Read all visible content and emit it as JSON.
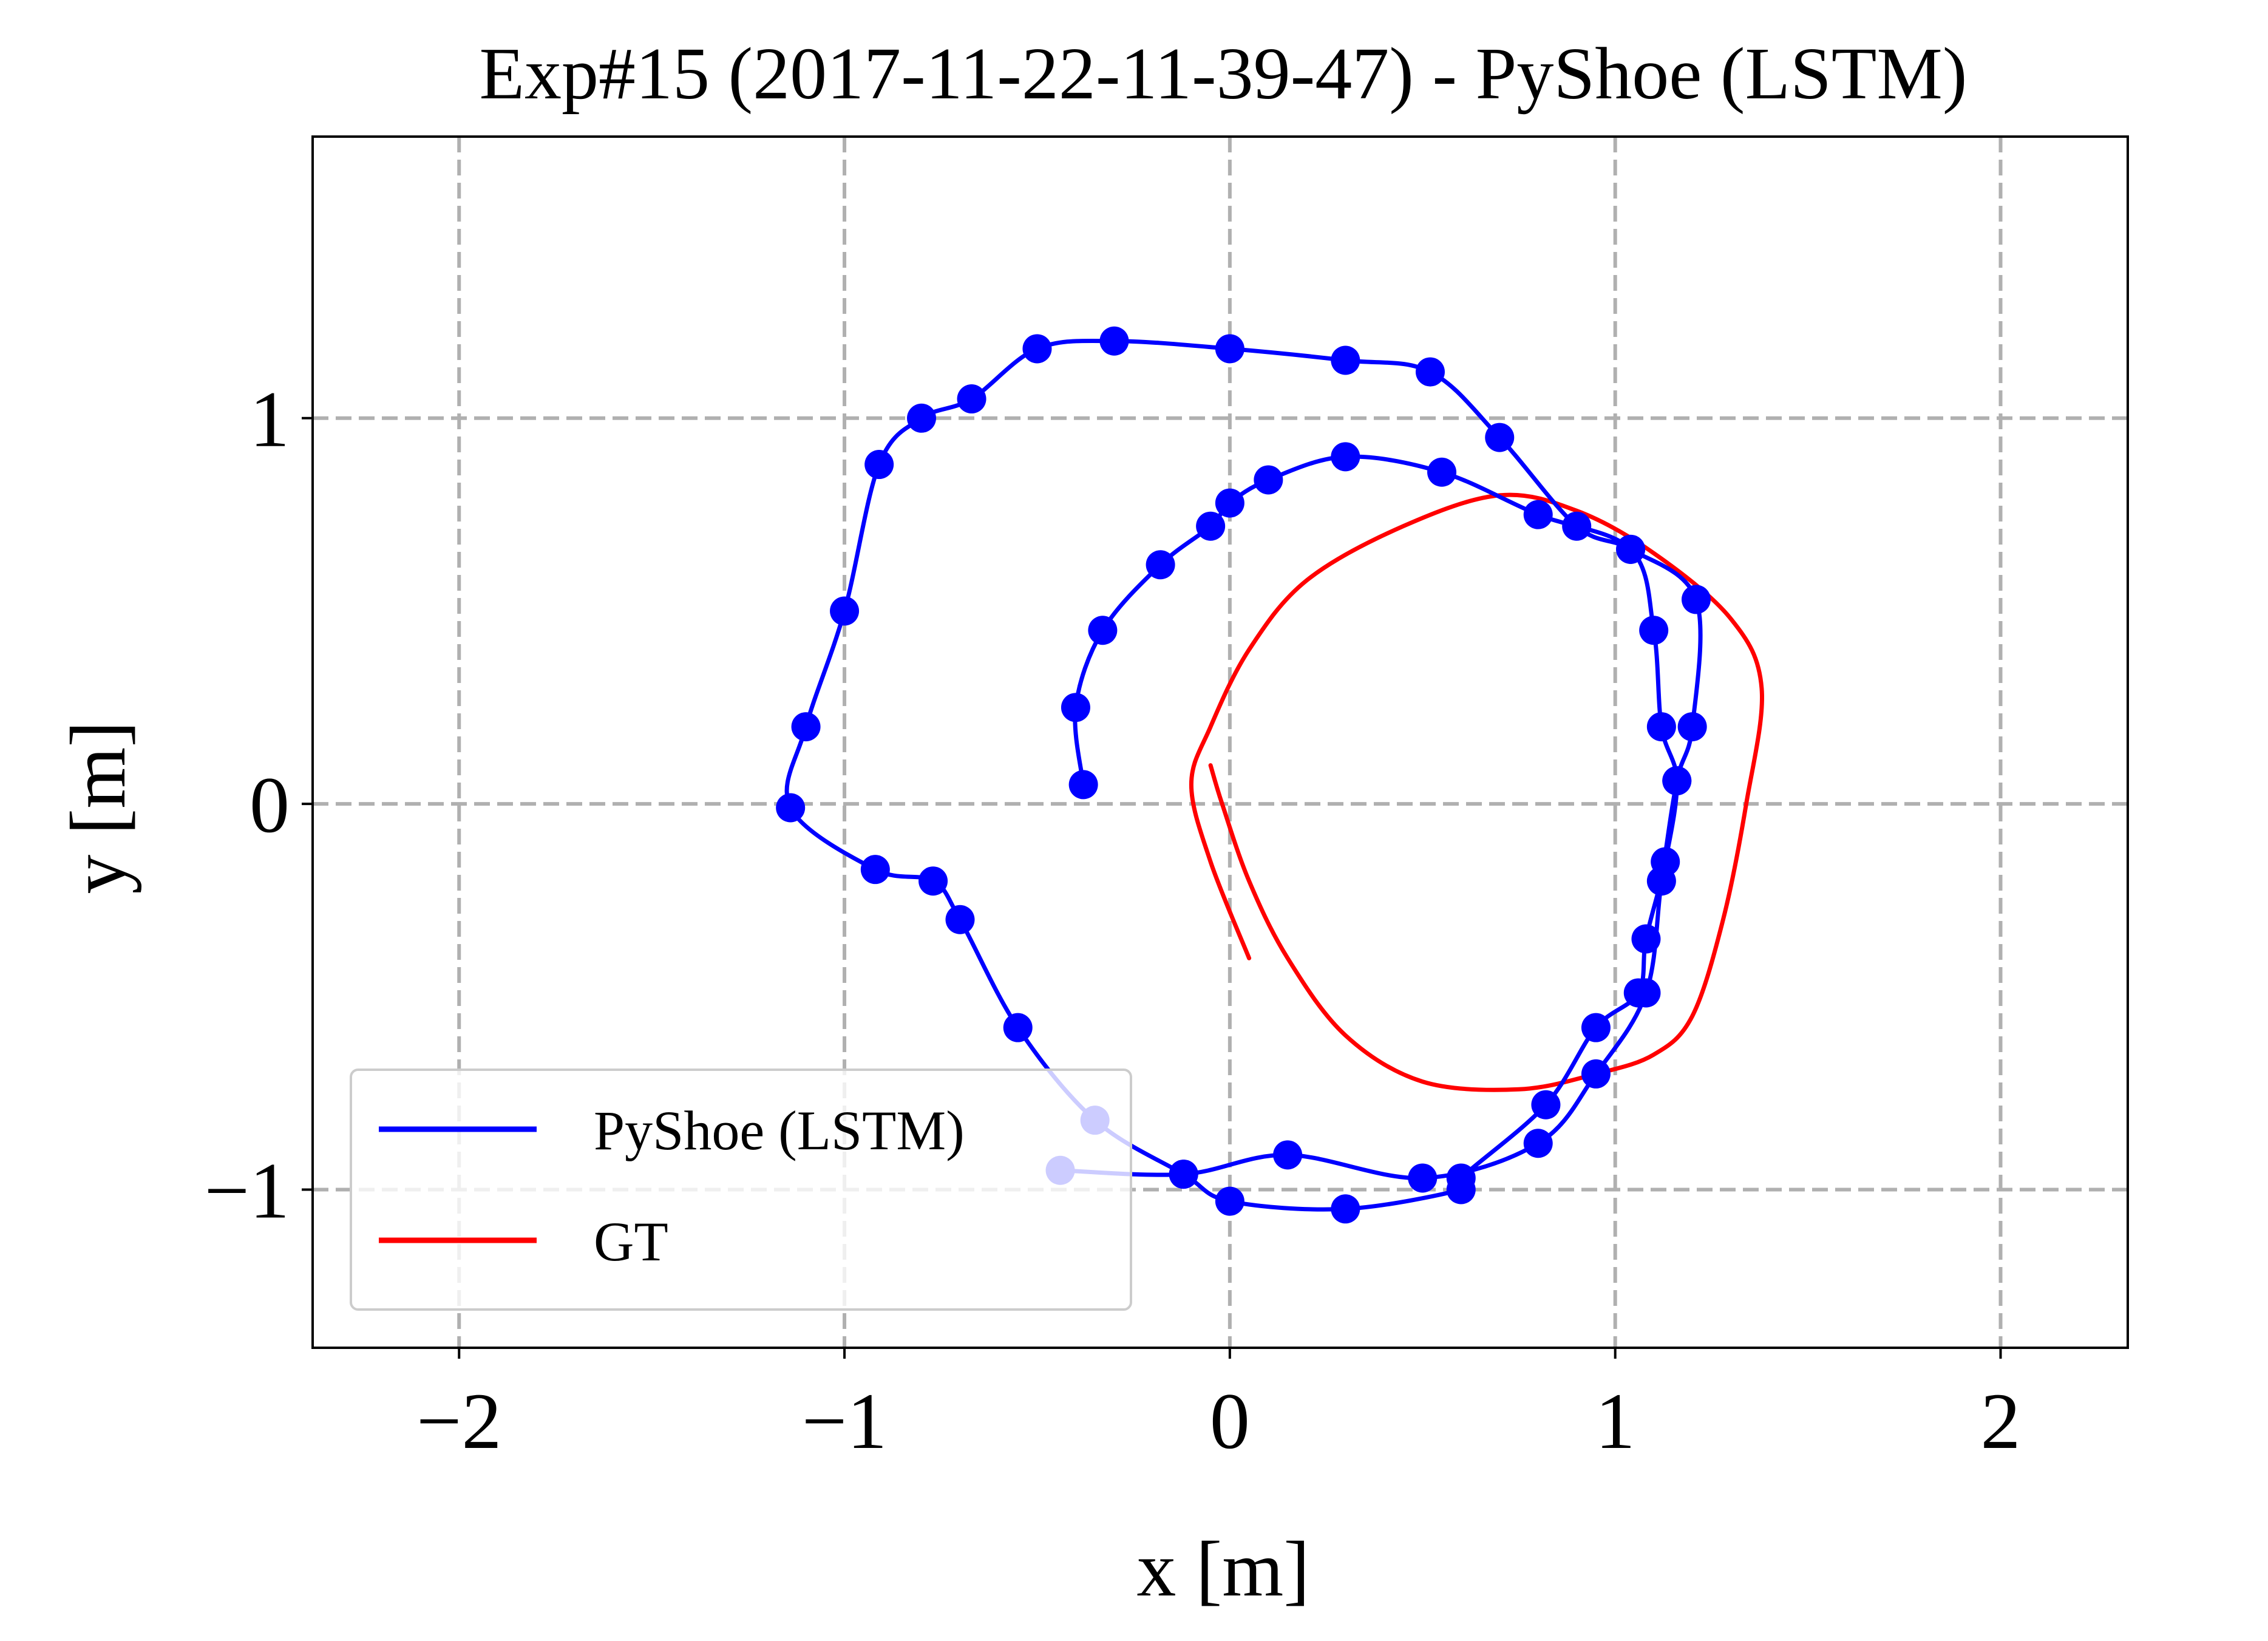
{
  "chart_data": {
    "type": "line",
    "title": "Exp#15 (2017-11-22-11-39-47) - PyShoe (LSTM)",
    "xlabel": "x [m]",
    "ylabel": "y [m]",
    "xlim": [
      -2.38,
      2.33
    ],
    "ylim": [
      -1.41,
      1.73
    ],
    "x_ticks": [
      -2,
      -1,
      0,
      1,
      2
    ],
    "y_ticks": [
      -1,
      0,
      1
    ],
    "x_tick_labels": [
      "−2",
      "−1",
      "0",
      "1",
      "2"
    ],
    "y_tick_labels": [
      "−1",
      "0",
      "1"
    ],
    "grid": true,
    "legend_position": "lower-left",
    "series": [
      {
        "name": "PyShoe (LSTM)",
        "color": "#0000ff",
        "has_step_markers": true,
        "points": [
          [
            -0.38,
            0.05
          ],
          [
            -0.4,
            0.25
          ],
          [
            -0.33,
            0.45
          ],
          [
            -0.18,
            0.62
          ],
          [
            -0.05,
            0.72
          ],
          [
            0.0,
            0.78
          ],
          [
            0.1,
            0.84
          ],
          [
            0.3,
            0.9
          ],
          [
            0.55,
            0.86
          ],
          [
            0.8,
            0.75
          ],
          [
            1.04,
            0.66
          ],
          [
            1.1,
            0.45
          ],
          [
            1.12,
            0.2
          ],
          [
            1.16,
            0.06
          ],
          [
            1.13,
            -0.15
          ],
          [
            1.08,
            -0.35
          ],
          [
            1.06,
            -0.49
          ],
          [
            0.95,
            -0.58
          ],
          [
            0.82,
            -0.78
          ],
          [
            0.6,
            -0.97
          ],
          [
            0.6,
            -1.0
          ],
          [
            0.3,
            -1.05
          ],
          [
            0.0,
            -1.03
          ],
          [
            -0.12,
            -0.96
          ],
          [
            -0.35,
            -0.82
          ],
          [
            -0.55,
            -0.58
          ],
          [
            -0.7,
            -0.3
          ],
          [
            -0.77,
            -0.2
          ],
          [
            -0.92,
            -0.17
          ],
          [
            -1.14,
            -0.01
          ],
          [
            -1.1,
            0.2
          ],
          [
            -1.0,
            0.5
          ],
          [
            -0.91,
            0.88
          ],
          [
            -0.8,
            1.0
          ],
          [
            -0.67,
            1.05
          ],
          [
            -0.5,
            1.18
          ],
          [
            -0.3,
            1.2
          ],
          [
            0.0,
            1.18
          ],
          [
            0.3,
            1.15
          ],
          [
            0.52,
            1.12
          ],
          [
            0.7,
            0.95
          ],
          [
            0.9,
            0.72
          ],
          [
            1.04,
            0.66
          ],
          [
            1.21,
            0.53
          ],
          [
            1.2,
            0.2
          ],
          [
            1.16,
            0.06
          ],
          [
            1.12,
            -0.2
          ],
          [
            1.08,
            -0.49
          ],
          [
            0.95,
            -0.7
          ],
          [
            0.8,
            -0.88
          ],
          [
            0.5,
            -0.97
          ],
          [
            0.15,
            -0.91
          ],
          [
            -0.12,
            -0.96
          ],
          [
            -0.44,
            -0.95
          ]
        ]
      },
      {
        "name": "GT",
        "color": "#ff0000",
        "has_step_markers": false,
        "points": [
          [
            -0.05,
            0.1
          ],
          [
            -0.02,
            0.0
          ],
          [
            0.05,
            -0.2
          ],
          [
            0.15,
            -0.4
          ],
          [
            0.3,
            -0.6
          ],
          [
            0.5,
            -0.72
          ],
          [
            0.75,
            -0.74
          ],
          [
            0.95,
            -0.7
          ],
          [
            1.1,
            -0.65
          ],
          [
            1.2,
            -0.55
          ],
          [
            1.28,
            -0.3
          ],
          [
            1.34,
            0.0
          ],
          [
            1.38,
            0.3
          ],
          [
            1.3,
            0.48
          ],
          [
            1.1,
            0.65
          ],
          [
            0.9,
            0.76
          ],
          [
            0.7,
            0.8
          ],
          [
            0.45,
            0.72
          ],
          [
            0.2,
            0.58
          ],
          [
            0.05,
            0.4
          ],
          [
            -0.05,
            0.2
          ],
          [
            -0.1,
            0.05
          ],
          [
            -0.05,
            -0.15
          ],
          [
            0.05,
            -0.4
          ]
        ]
      }
    ]
  },
  "legend": {
    "items": [
      {
        "label": "PyShoe (LSTM)",
        "color": "#0000ff"
      },
      {
        "label": "GT",
        "color": "#ff0000"
      }
    ]
  }
}
